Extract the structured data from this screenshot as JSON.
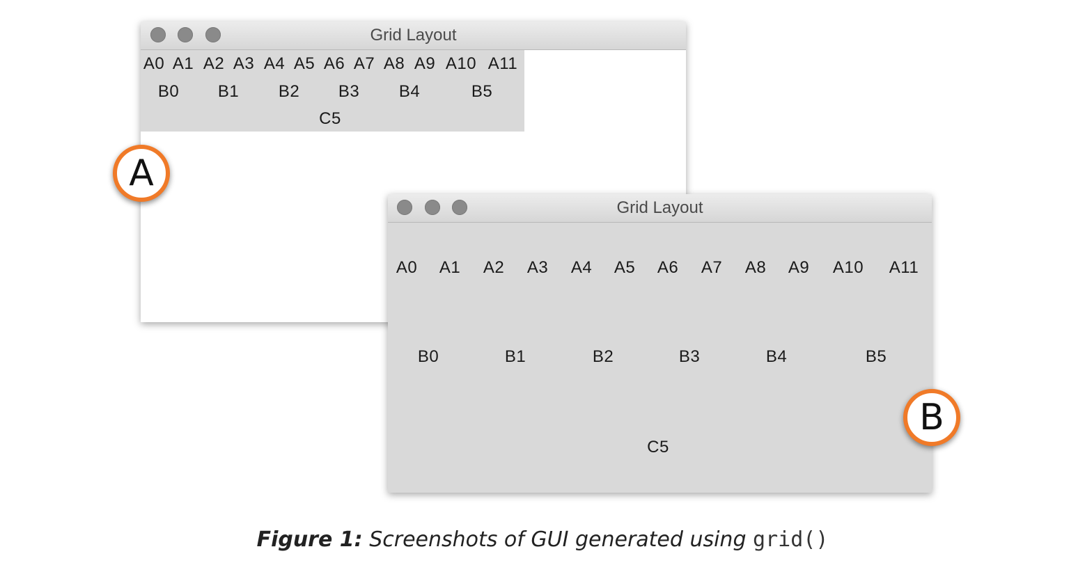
{
  "window_a": {
    "title": "Grid Layout",
    "row_a": [
      "A0",
      "A1",
      "A2",
      "A3",
      "A4",
      "A5",
      "A6",
      "A7",
      "A8",
      "A9",
      "A10",
      "A11"
    ],
    "row_b": [
      "B0",
      "B1",
      "B2",
      "B3",
      "B4",
      "B5"
    ],
    "row_c": "C5"
  },
  "window_b": {
    "title": "Grid Layout",
    "row_a": [
      "A0",
      "A1",
      "A2",
      "A3",
      "A4",
      "A5",
      "A6",
      "A7",
      "A8",
      "A9",
      "A10",
      "A11"
    ],
    "row_b": [
      "B0",
      "B1",
      "B2",
      "B3",
      "B4",
      "B5"
    ],
    "row_c": "C5"
  },
  "badges": {
    "a": "A",
    "b": "B"
  },
  "caption": {
    "prefix": "Figure 1:",
    "text": "Screenshots of GUI generated using",
    "code": "grid()"
  },
  "colors": {
    "accent": "#f07a28",
    "grid_bg": "#d9d9d9",
    "traffic_light": "#8a8a8a"
  }
}
